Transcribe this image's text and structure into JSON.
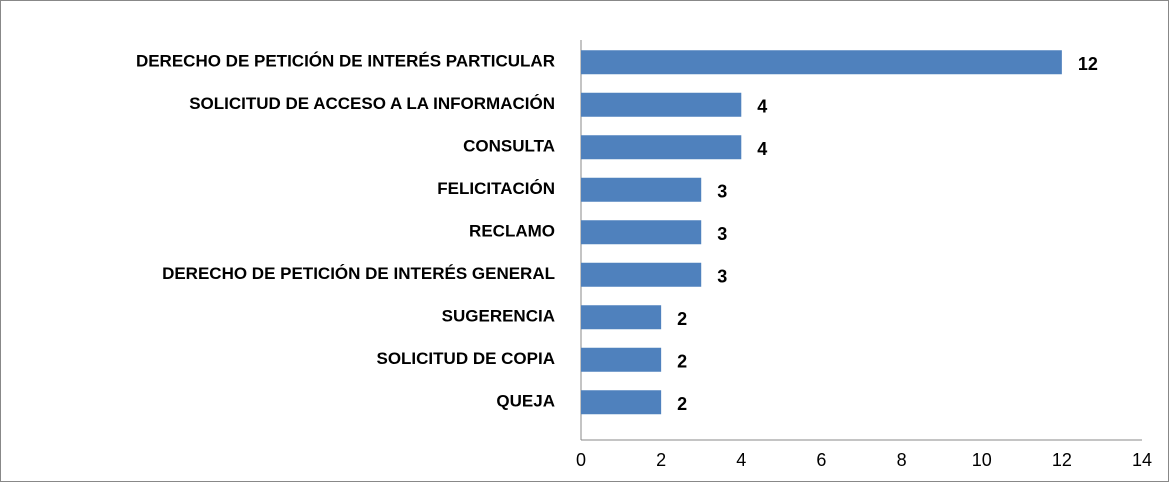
{
  "chart_data": {
    "type": "bar",
    "orientation": "horizontal",
    "categories": [
      "DERECHO DE PETICIÓN DE INTERÉS PARTICULAR",
      "SOLICITUD DE ACCESO A LA INFORMACIÓN",
      "CONSULTA",
      "FELICITACIÓN",
      "RECLAMO",
      "DERECHO DE PETICIÓN DE INTERÉS GENERAL",
      "SUGERENCIA",
      "SOLICITUD DE COPIA",
      "QUEJA"
    ],
    "values": [
      12,
      4,
      4,
      3,
      3,
      3,
      2,
      2,
      2
    ],
    "color": "#4f81bd",
    "xlim": [
      0,
      14
    ],
    "xticks": [
      0,
      2,
      4,
      6,
      8,
      10,
      12,
      14
    ],
    "grid": false
  }
}
